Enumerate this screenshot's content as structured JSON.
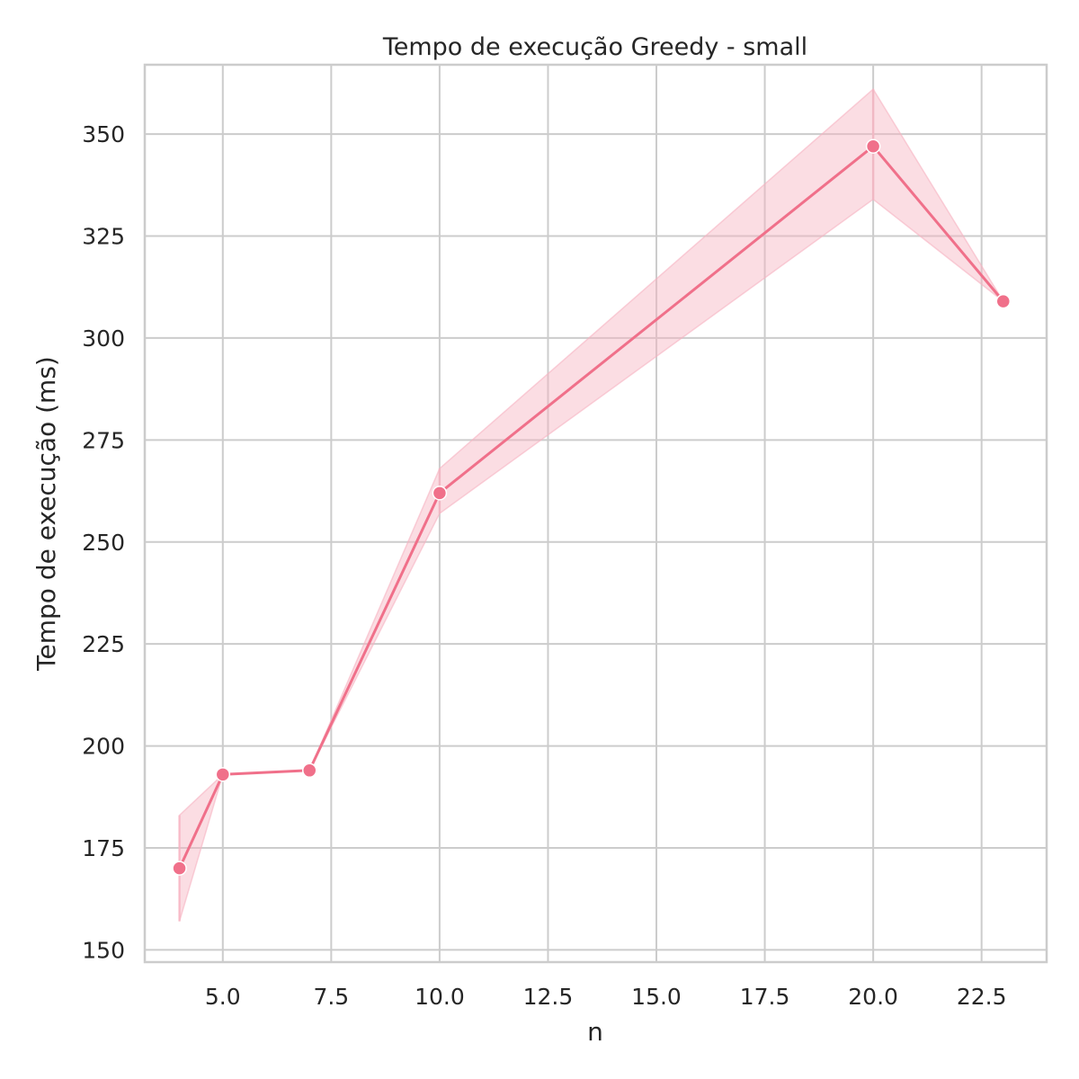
{
  "chart_data": {
    "type": "line",
    "title": "Tempo de execução Greedy - small",
    "xlabel": "n",
    "ylabel": "Tempo de execução (ms)",
    "xlim": [
      3.2,
      24.0
    ],
    "ylim": [
      147,
      367
    ],
    "xticks": [
      5.0,
      7.5,
      10.0,
      12.5,
      15.0,
      17.5,
      20.0,
      22.5
    ],
    "xtick_labels": [
      "5.0",
      "7.5",
      "10.0",
      "12.5",
      "15.0",
      "17.5",
      "20.0",
      "22.5"
    ],
    "yticks": [
      150,
      175,
      200,
      225,
      250,
      275,
      300,
      325,
      350
    ],
    "ytick_labels": [
      "150",
      "175",
      "200",
      "225",
      "250",
      "275",
      "300",
      "325",
      "350"
    ],
    "grid": true,
    "colors": {
      "line": "#f0708a",
      "band": "#f7b3c2",
      "grid": "#cccccc",
      "text": "#262626"
    },
    "series": [
      {
        "x": [
          4,
          5,
          7,
          10,
          20,
          23
        ],
        "y": [
          170,
          193,
          194,
          262,
          347,
          309
        ],
        "ci_lower": [
          157,
          193,
          194,
          257,
          334,
          309
        ],
        "ci_upper": [
          183,
          193,
          194,
          268,
          361,
          309
        ]
      }
    ]
  }
}
